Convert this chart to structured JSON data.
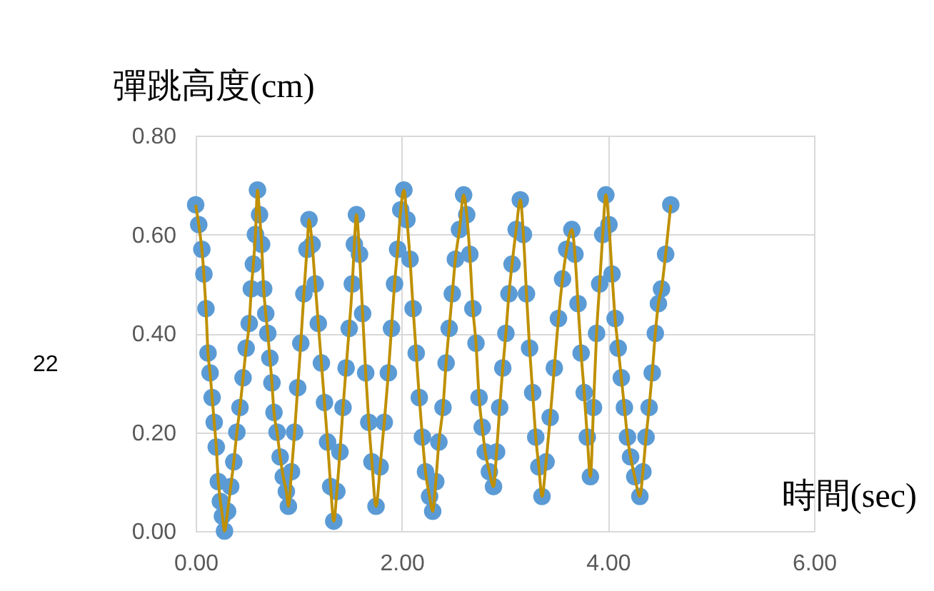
{
  "chart_data": {
    "type": "scatter",
    "title": "彈跳高度(cm)",
    "xlabel": "時間(sec)",
    "annotations": [
      "22"
    ],
    "xlim": [
      0,
      6
    ],
    "xticks": [
      {
        "value": 0,
        "label": "0.00"
      },
      {
        "value": 2,
        "label": "2.00"
      },
      {
        "value": 4,
        "label": "4.00"
      },
      {
        "value": 6,
        "label": "6.00"
      }
    ],
    "ylim": [
      0,
      0.8
    ],
    "yticks": [
      {
        "value": 0,
        "label": "0.00"
      },
      {
        "value": 0.2,
        "label": "0.20"
      },
      {
        "value": 0.4,
        "label": "0.40"
      },
      {
        "value": 0.6,
        "label": "0.60"
      },
      {
        "value": 0.8,
        "label": "0.80"
      }
    ],
    "grid": true,
    "line_style": "solid",
    "x": [
      0.0,
      0.03,
      0.06,
      0.08,
      0.1,
      0.12,
      0.14,
      0.16,
      0.18,
      0.2,
      0.22,
      0.24,
      0.26,
      0.28,
      0.31,
      0.34,
      0.37,
      0.4,
      0.43,
      0.46,
      0.49,
      0.52,
      0.54,
      0.56,
      0.58,
      0.6,
      0.62,
      0.64,
      0.66,
      0.68,
      0.7,
      0.72,
      0.74,
      0.76,
      0.79,
      0.82,
      0.85,
      0.88,
      0.9,
      0.93,
      0.96,
      0.99,
      1.02,
      1.05,
      1.08,
      1.1,
      1.13,
      1.16,
      1.19,
      1.22,
      1.25,
      1.28,
      1.31,
      1.34,
      1.37,
      1.4,
      1.43,
      1.46,
      1.49,
      1.52,
      1.54,
      1.56,
      1.59,
      1.62,
      1.65,
      1.68,
      1.71,
      1.75,
      1.79,
      1.83,
      1.87,
      1.9,
      1.93,
      1.96,
      1.99,
      2.02,
      2.05,
      2.08,
      2.11,
      2.14,
      2.17,
      2.2,
      2.23,
      2.27,
      2.3,
      2.33,
      2.36,
      2.4,
      2.43,
      2.46,
      2.49,
      2.52,
      2.56,
      2.6,
      2.63,
      2.66,
      2.69,
      2.72,
      2.75,
      2.78,
      2.81,
      2.85,
      2.89,
      2.92,
      2.95,
      2.98,
      3.01,
      3.04,
      3.07,
      3.11,
      3.15,
      3.18,
      3.21,
      3.24,
      3.27,
      3.3,
      3.33,
      3.36,
      3.4,
      3.44,
      3.48,
      3.52,
      3.56,
      3.6,
      3.65,
      3.68,
      3.71,
      3.74,
      3.77,
      3.8,
      3.83,
      3.86,
      3.89,
      3.92,
      3.95,
      3.98,
      4.01,
      4.04,
      4.07,
      4.1,
      4.13,
      4.16,
      4.19,
      4.22,
      4.26,
      4.31,
      4.34,
      4.37,
      4.4,
      4.43,
      4.46,
      4.49,
      4.52,
      4.56,
      4.61
    ],
    "series": [
      {
        "marker": "circle",
        "color": "#5b9bd5",
        "values": [
          0.66,
          0.62,
          0.57,
          0.52,
          0.45,
          0.36,
          0.32,
          0.27,
          0.22,
          0.17,
          0.1,
          0.06,
          0.03,
          0.0,
          0.04,
          0.09,
          0.14,
          0.2,
          0.25,
          0.31,
          0.37,
          0.42,
          0.49,
          0.54,
          0.6,
          0.69,
          0.64,
          0.58,
          0.49,
          0.44,
          0.4,
          0.35,
          0.3,
          0.24,
          0.2,
          0.15,
          0.11,
          0.08,
          0.05,
          0.12,
          0.2,
          0.29,
          0.38,
          0.48,
          0.57,
          0.63,
          0.58,
          0.5,
          0.42,
          0.34,
          0.26,
          0.18,
          0.09,
          0.02,
          0.08,
          0.16,
          0.25,
          0.33,
          0.41,
          0.5,
          0.58,
          0.64,
          0.56,
          0.44,
          0.32,
          0.22,
          0.14,
          0.05,
          0.13,
          0.22,
          0.32,
          0.41,
          0.5,
          0.57,
          0.65,
          0.69,
          0.63,
          0.55,
          0.45,
          0.36,
          0.27,
          0.19,
          0.12,
          0.07,
          0.04,
          0.1,
          0.18,
          0.25,
          0.34,
          0.41,
          0.48,
          0.55,
          0.61,
          0.68,
          0.64,
          0.56,
          0.45,
          0.38,
          0.27,
          0.21,
          0.16,
          0.12,
          0.09,
          0.16,
          0.25,
          0.33,
          0.4,
          0.48,
          0.54,
          0.61,
          0.67,
          0.6,
          0.48,
          0.37,
          0.28,
          0.19,
          0.13,
          0.07,
          0.14,
          0.23,
          0.33,
          0.43,
          0.51,
          0.57,
          0.61,
          0.56,
          0.46,
          0.36,
          0.28,
          0.19,
          0.11,
          0.25,
          0.4,
          0.5,
          0.6,
          0.68,
          0.62,
          0.52,
          0.43,
          0.37,
          0.31,
          0.25,
          0.19,
          0.15,
          0.11,
          0.07,
          0.12,
          0.19,
          0.25,
          0.32,
          0.4,
          0.46,
          0.49,
          0.56,
          0.66
        ]
      },
      {
        "type": "line",
        "marker": "none",
        "color": "#bf9000",
        "values": [
          0.66,
          0.62,
          0.57,
          0.52,
          0.45,
          0.36,
          0.32,
          0.27,
          0.22,
          0.17,
          0.1,
          0.06,
          0.03,
          0.0,
          0.04,
          0.09,
          0.14,
          0.2,
          0.25,
          0.31,
          0.37,
          0.42,
          0.49,
          0.54,
          0.6,
          0.69,
          0.64,
          0.58,
          0.49,
          0.44,
          0.4,
          0.35,
          0.3,
          0.24,
          0.2,
          0.15,
          0.11,
          0.08,
          0.05,
          0.12,
          0.2,
          0.29,
          0.38,
          0.48,
          0.57,
          0.63,
          0.58,
          0.5,
          0.42,
          0.34,
          0.26,
          0.18,
          0.09,
          0.02,
          0.08,
          0.16,
          0.25,
          0.33,
          0.41,
          0.5,
          0.58,
          0.64,
          0.56,
          0.44,
          0.32,
          0.22,
          0.14,
          0.05,
          0.13,
          0.22,
          0.32,
          0.41,
          0.5,
          0.57,
          0.65,
          0.69,
          0.63,
          0.55,
          0.45,
          0.36,
          0.27,
          0.19,
          0.12,
          0.07,
          0.04,
          0.1,
          0.18,
          0.25,
          0.34,
          0.41,
          0.48,
          0.55,
          0.61,
          0.68,
          0.64,
          0.56,
          0.45,
          0.38,
          0.27,
          0.21,
          0.16,
          0.12,
          0.09,
          0.16,
          0.25,
          0.33,
          0.4,
          0.48,
          0.54,
          0.61,
          0.67,
          0.6,
          0.48,
          0.37,
          0.28,
          0.19,
          0.13,
          0.07,
          0.14,
          0.23,
          0.33,
          0.43,
          0.51,
          0.57,
          0.61,
          0.56,
          0.46,
          0.36,
          0.28,
          0.19,
          0.11,
          0.25,
          0.4,
          0.5,
          0.6,
          0.68,
          0.62,
          0.52,
          0.43,
          0.37,
          0.31,
          0.25,
          0.19,
          0.15,
          0.11,
          0.07,
          0.12,
          0.19,
          0.25,
          0.32,
          0.4,
          0.46,
          0.49,
          0.56,
          0.66
        ]
      }
    ]
  }
}
